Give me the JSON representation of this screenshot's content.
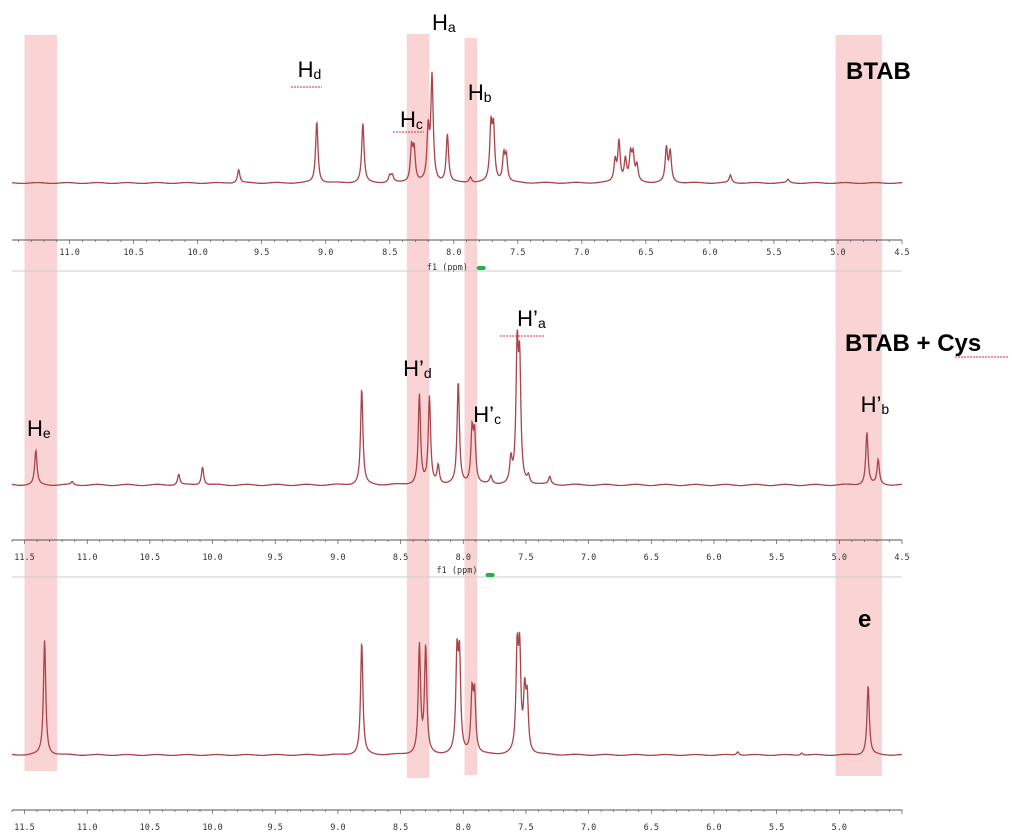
{
  "colors": {
    "spectrum": "#a8444a",
    "highlight": "#f7b8b8",
    "axis": "#555555",
    "separator": "#cccccc",
    "marker": "#22b14c",
    "spell_underline": "#e03030"
  },
  "chart_data": {
    "type": "line",
    "title": "",
    "xlabel": "f1 (ppm)",
    "ylabel": "",
    "x_direction": "decreasing",
    "grid": false,
    "highlight_bands_ppm": [
      [
        11.5,
        11.24
      ],
      [
        8.45,
        8.27
      ],
      [
        7.99,
        7.89
      ],
      [
        5.03,
        4.66
      ]
    ],
    "panels": [
      {
        "name": "BTAB",
        "title": "BTAB",
        "xlim": [
          11.45,
          4.5
        ],
        "ticks": [
          "11.0",
          "10.5",
          "10.0",
          "9.5",
          "9.0",
          "8.5",
          "8.0",
          "7.5",
          "7.0",
          "6.5",
          "6.0",
          "5.5",
          "5.0",
          "4.5"
        ],
        "axis_title": "f1 (ppm)",
        "peaks": [
          {
            "ppm": 9.68,
            "height": 0.12
          },
          {
            "ppm": 9.07,
            "height": 0.55
          },
          {
            "ppm": 8.71,
            "height": 0.53
          },
          {
            "ppm": 8.5,
            "height": 0.06
          },
          {
            "ppm": 8.48,
            "height": 0.06
          },
          {
            "ppm": 8.33,
            "height": 0.3
          },
          {
            "ppm": 8.31,
            "height": 0.28
          },
          {
            "ppm": 8.2,
            "height": 0.45
          },
          {
            "ppm": 8.17,
            "height": 0.93
          },
          {
            "ppm": 8.05,
            "height": 0.43
          },
          {
            "ppm": 7.87,
            "height": 0.05
          },
          {
            "ppm": 7.71,
            "height": 0.48
          },
          {
            "ppm": 7.69,
            "height": 0.46
          },
          {
            "ppm": 7.61,
            "height": 0.23
          },
          {
            "ppm": 7.59,
            "height": 0.22
          },
          {
            "ppm": 6.74,
            "height": 0.19
          },
          {
            "ppm": 6.71,
            "height": 0.36
          },
          {
            "ppm": 6.66,
            "height": 0.2
          },
          {
            "ppm": 6.62,
            "height": 0.23
          },
          {
            "ppm": 6.6,
            "height": 0.22
          },
          {
            "ppm": 6.57,
            "height": 0.14
          },
          {
            "ppm": 6.34,
            "height": 0.3
          },
          {
            "ppm": 6.31,
            "height": 0.27
          },
          {
            "ppm": 5.84,
            "height": 0.07
          },
          {
            "ppm": 5.39,
            "height": 0.03
          }
        ],
        "labels": [
          {
            "main": "H",
            "sub": "d",
            "ppm": 9.22
          },
          {
            "main": "H",
            "sub": "c",
            "ppm": 8.42
          },
          {
            "main": "H",
            "sub": "a",
            "ppm": 8.17
          },
          {
            "main": "H",
            "sub": "b",
            "ppm": 7.89
          }
        ]
      },
      {
        "name": "BTAB + Cys",
        "title": "BTAB + Cys",
        "xlim": [
          11.6,
          4.5
        ],
        "ticks": [
          "11.5",
          "11.0",
          "10.5",
          "10.0",
          "9.5",
          "9.0",
          "8.5",
          "8.0",
          "7.5",
          "7.0",
          "6.5",
          "6.0",
          "5.5",
          "5.0",
          "4.5"
        ],
        "axis_title": "f1 (ppm)",
        "peaks": [
          {
            "ppm": 11.41,
            "height": 0.22
          },
          {
            "ppm": 11.12,
            "height": 0.02
          },
          {
            "ppm": 10.27,
            "height": 0.07
          },
          {
            "ppm": 10.08,
            "height": 0.12
          },
          {
            "ppm": 8.81,
            "height": 0.62
          },
          {
            "ppm": 8.35,
            "height": 0.58
          },
          {
            "ppm": 8.27,
            "height": 0.56
          },
          {
            "ppm": 8.2,
            "height": 0.12
          },
          {
            "ppm": 8.04,
            "height": 0.66
          },
          {
            "ppm": 7.93,
            "height": 0.33
          },
          {
            "ppm": 7.91,
            "height": 0.31
          },
          {
            "ppm": 7.78,
            "height": 0.05
          },
          {
            "ppm": 7.62,
            "height": 0.15
          },
          {
            "ppm": 7.57,
            "height": 0.83
          },
          {
            "ppm": 7.55,
            "height": 0.72
          },
          {
            "ppm": 7.48,
            "height": 0.05
          },
          {
            "ppm": 7.31,
            "height": 0.05
          },
          {
            "ppm": 4.78,
            "height": 0.34
          },
          {
            "ppm": 4.69,
            "height": 0.16
          }
        ],
        "labels": [
          {
            "main": "H",
            "sub": "e",
            "ppm": 11.48
          },
          {
            "main": "H’",
            "sub": "d",
            "ppm": 8.48
          },
          {
            "main": "H’",
            "sub": "c",
            "ppm": 7.92
          },
          {
            "main": "H’",
            "sub": "a",
            "ppm": 7.57
          },
          {
            "main": "H’",
            "sub": "b",
            "ppm": 4.83
          }
        ]
      },
      {
        "name": "e",
        "title": "e",
        "xlim": [
          11.6,
          4.5
        ],
        "ticks": [
          "11.5",
          "11.0",
          "10.5",
          "10.0",
          "9.5",
          "9.0",
          "8.5",
          "8.0",
          "7.5",
          "7.0",
          "6.5",
          "6.0",
          "5.5",
          "5.0"
        ],
        "axis_title": "",
        "peaks": [
          {
            "ppm": 11.34,
            "height": 0.96
          },
          {
            "ppm": 8.81,
            "height": 0.94
          },
          {
            "ppm": 8.35,
            "height": 0.9
          },
          {
            "ppm": 8.3,
            "height": 0.88
          },
          {
            "ppm": 8.05,
            "height": 0.78
          },
          {
            "ppm": 8.03,
            "height": 0.76
          },
          {
            "ppm": 7.93,
            "height": 0.48
          },
          {
            "ppm": 7.91,
            "height": 0.47
          },
          {
            "ppm": 7.57,
            "height": 0.81
          },
          {
            "ppm": 7.55,
            "height": 0.78
          },
          {
            "ppm": 7.51,
            "height": 0.47
          },
          {
            "ppm": 7.49,
            "height": 0.43
          },
          {
            "ppm": 5.81,
            "height": 0.03
          },
          {
            "ppm": 5.3,
            "height": 0.02
          },
          {
            "ppm": 4.77,
            "height": 0.58
          }
        ],
        "labels": []
      }
    ]
  }
}
